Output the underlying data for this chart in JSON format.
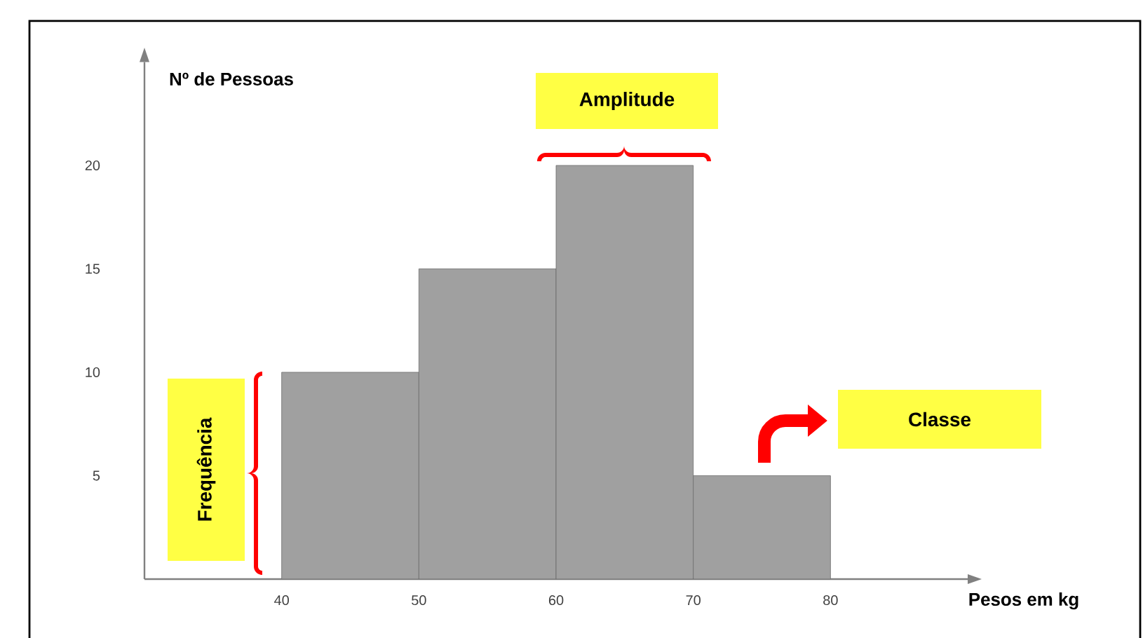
{
  "chart_data": {
    "type": "histogram",
    "xlabel": "Pesos em kg",
    "ylabel": "Nº de Pessoas",
    "bins": [
      40,
      50,
      60,
      70,
      80
    ],
    "values": [
      10,
      15,
      20,
      5
    ],
    "color": "#a0a0a0",
    "xlim": [
      30,
      90
    ],
    "ylim": [
      0,
      25
    ],
    "xticks": [
      40,
      50,
      60,
      70,
      80
    ],
    "yticks": [
      5,
      10,
      15,
      20
    ],
    "grid": false,
    "annotations": [
      "Amplitude",
      "Classe",
      "Frequência"
    ]
  }
}
